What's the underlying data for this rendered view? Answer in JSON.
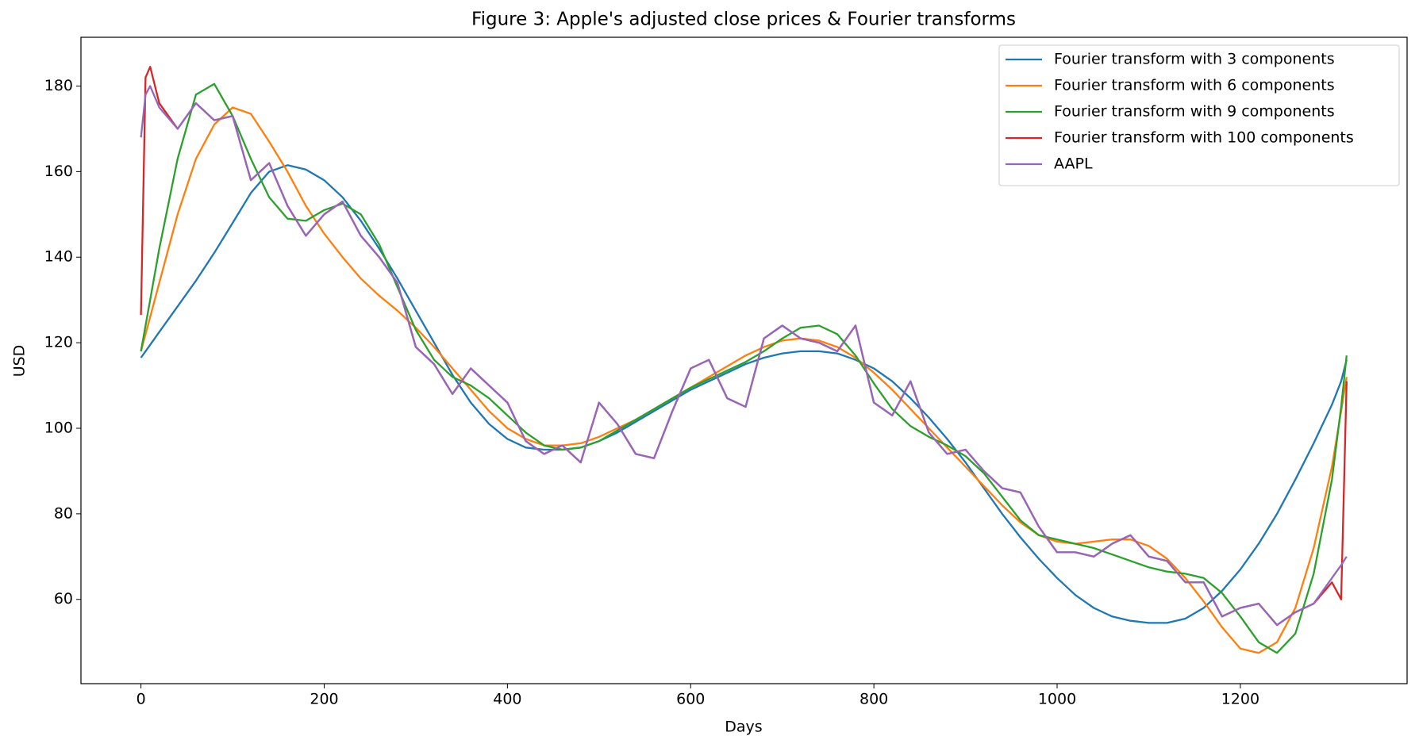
{
  "chart_data": {
    "type": "line",
    "title": "Figure 3: Apple's adjusted close prices & Fourier transforms",
    "xlabel": "Days",
    "ylabel": "USD",
    "xlim": [
      -65.5,
      1382
    ],
    "ylim": [
      40.3,
      191.4
    ],
    "xticks": [
      0,
      200,
      400,
      600,
      800,
      1000,
      1200
    ],
    "yticks": [
      60,
      80,
      100,
      120,
      140,
      160,
      180
    ],
    "legend": "upper right",
    "x": [
      0,
      5,
      10,
      20,
      40,
      60,
      80,
      100,
      120,
      140,
      160,
      180,
      200,
      220,
      240,
      260,
      280,
      300,
      320,
      340,
      360,
      380,
      400,
      420,
      440,
      460,
      480,
      500,
      520,
      540,
      560,
      580,
      600,
      620,
      640,
      660,
      680,
      700,
      720,
      740,
      760,
      780,
      800,
      820,
      840,
      860,
      880,
      900,
      920,
      940,
      960,
      980,
      1000,
      1020,
      1040,
      1060,
      1080,
      1100,
      1120,
      1140,
      1160,
      1180,
      1200,
      1220,
      1240,
      1260,
      1280,
      1300,
      1310,
      1316
    ],
    "series": [
      {
        "name": "Fourier transform with 3 components",
        "color": "#1f77b4",
        "values": [
          116.5,
          118,
          119.5,
          122.5,
          128.5,
          134.5,
          141,
          148,
          155,
          160,
          161.5,
          160.5,
          158,
          154,
          148.5,
          142,
          135,
          127.5,
          120,
          112.5,
          106,
          101,
          97.5,
          95.5,
          95,
          95,
          95.5,
          97,
          99,
          101.5,
          104,
          106.5,
          109,
          111,
          113,
          115,
          116.5,
          117.5,
          118,
          118,
          117.5,
          116,
          114,
          111,
          107,
          102.5,
          97.5,
          92,
          86,
          80,
          74.5,
          69.5,
          65,
          61,
          58,
          56,
          55,
          54.5,
          54.5,
          55.5,
          58,
          62,
          67,
          73,
          80,
          88,
          96.5,
          105.5,
          111,
          116
        ]
      },
      {
        "name": "Fourier transform with 6 components",
        "color": "#ff7f0e",
        "values": [
          118,
          122,
          126,
          134,
          150,
          163,
          171,
          175,
          173.5,
          167,
          160,
          152,
          145.5,
          140,
          135,
          131,
          127.5,
          123.5,
          119,
          114,
          109,
          104,
          100,
          97.5,
          96,
          96,
          96.5,
          98,
          100,
          102,
          104.5,
          107,
          109.5,
          112,
          114.5,
          117,
          119,
          120.5,
          121,
          120.5,
          119,
          116.5,
          113,
          109,
          104.5,
          100,
          95.5,
          91,
          86.5,
          82,
          78,
          75,
          73.5,
          73,
          73.5,
          74,
          74,
          72.5,
          69.5,
          65,
          59.5,
          53.5,
          48.5,
          47.5,
          50,
          58,
          72,
          91,
          104,
          112
        ]
      },
      {
        "name": "Fourier transform with 9 components",
        "color": "#2ca02c",
        "values": [
          118,
          124,
          130,
          142,
          163,
          178,
          180.5,
          173,
          163,
          154,
          149,
          148.5,
          151,
          152.5,
          150,
          143,
          133,
          123,
          116,
          112,
          110,
          107,
          103,
          99,
          96,
          95,
          95.5,
          97,
          99.5,
          102,
          104.5,
          107,
          109.5,
          111.5,
          113.5,
          115.5,
          118,
          121,
          123.5,
          124,
          122,
          117,
          110.5,
          104.5,
          100.5,
          98,
          96,
          93.5,
          89.5,
          84,
          78.5,
          75,
          74,
          73,
          72,
          70.5,
          69,
          67.5,
          66.5,
          66,
          65,
          61.5,
          56,
          50,
          47.5,
          52,
          66,
          88,
          105,
          117
        ]
      },
      {
        "name": "Fourier transform with 100 components",
        "color": "#d62728",
        "values": [
          126.5,
          182,
          184.5,
          176,
          170,
          176,
          172,
          173,
          158,
          162,
          152,
          145,
          150,
          153,
          145,
          140,
          134,
          119,
          115,
          108,
          114,
          110,
          106,
          97,
          94,
          96,
          92,
          106,
          101,
          94,
          93,
          104,
          114,
          116,
          107,
          105,
          121,
          124,
          121,
          120,
          118,
          124,
          106,
          103,
          111,
          99,
          94,
          95,
          90,
          86,
          85,
          77,
          71,
          71,
          70,
          73,
          75,
          70,
          69,
          64,
          64,
          56,
          58,
          59,
          54,
          57,
          59,
          64,
          60,
          111
        ]
      },
      {
        "name": "AAPL",
        "color": "#9467bd",
        "values": [
          168,
          178,
          180,
          175,
          170,
          176,
          172,
          173,
          158,
          162,
          152,
          145,
          150,
          153,
          145,
          140,
          134,
          119,
          115,
          108,
          114,
          110,
          106,
          97,
          94,
          96,
          92,
          106,
          101,
          94,
          93,
          104,
          114,
          116,
          107,
          105,
          121,
          124,
          121,
          120,
          118,
          124,
          106,
          103,
          111,
          99,
          94,
          95,
          90,
          86,
          85,
          77,
          71,
          71,
          70,
          73,
          75,
          70,
          69,
          64,
          64,
          56,
          58,
          59,
          54,
          57,
          59,
          65,
          68,
          70
        ]
      }
    ]
  }
}
